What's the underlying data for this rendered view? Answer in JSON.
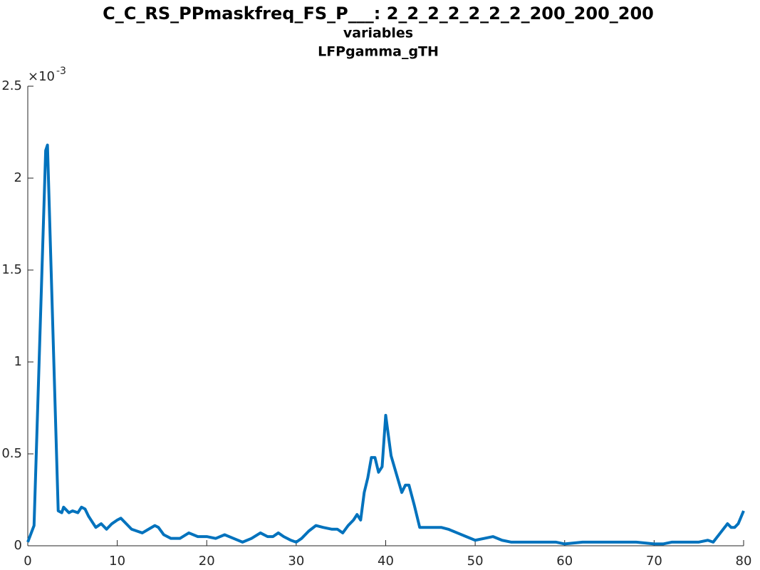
{
  "chart_data": {
    "type": "line",
    "title": "C_C_RS_PPmaskfreq_FS_P___: 2_2_2_2_2_2_2_200_200_200",
    "subtitle": [
      "variables",
      "LFPgamma_gTH"
    ],
    "y_multiplier": {
      "base": "×10",
      "exponent": "-3"
    },
    "x": [
      0,
      0.7,
      2,
      2.2,
      3.4,
      3.8,
      4,
      4.6,
      5,
      5.6,
      6,
      6.4,
      6.8,
      7.6,
      8.2,
      8.8,
      9.4,
      10,
      10.4,
      11,
      11.6,
      12.2,
      12.8,
      13.5,
      14.2,
      14.6,
      15.2,
      16,
      17,
      18,
      19,
      20,
      21,
      22,
      23,
      24,
      25,
      26,
      26.8,
      27.4,
      28,
      28.6,
      29.4,
      30,
      30.6,
      31.4,
      32.2,
      33,
      34,
      34.6,
      35.2,
      35.8,
      36.4,
      36.8,
      37.2,
      37.6,
      38,
      38.4,
      38.8,
      39.2,
      39.6,
      40,
      40.6,
      41.2,
      41.8,
      42.2,
      42.6,
      43.2,
      43.8,
      44.4,
      45,
      45.6,
      46.2,
      47,
      48,
      49,
      50,
      51,
      52,
      53,
      54,
      55,
      56,
      57,
      58,
      59,
      60,
      62,
      64,
      66,
      68,
      70,
      71,
      72,
      73,
      74,
      75,
      76,
      76.6,
      77.4,
      78.2,
      78.6,
      79,
      79.4,
      80
    ],
    "series": [
      {
        "color": "#0072bd",
        "values": [
          0.02,
          0.11,
          2.15,
          2.18,
          0.19,
          0.18,
          0.21,
          0.18,
          0.19,
          0.18,
          0.21,
          0.2,
          0.16,
          0.1,
          0.12,
          0.09,
          0.12,
          0.14,
          0.15,
          0.12,
          0.09,
          0.08,
          0.07,
          0.09,
          0.11,
          0.1,
          0.06,
          0.04,
          0.04,
          0.07,
          0.05,
          0.05,
          0.04,
          0.06,
          0.04,
          0.02,
          0.04,
          0.07,
          0.05,
          0.05,
          0.07,
          0.05,
          0.03,
          0.02,
          0.04,
          0.08,
          0.11,
          0.1,
          0.09,
          0.09,
          0.07,
          0.11,
          0.14,
          0.17,
          0.14,
          0.29,
          0.37,
          0.48,
          0.48,
          0.4,
          0.43,
          0.71,
          0.49,
          0.39,
          0.29,
          0.33,
          0.33,
          0.22,
          0.1,
          0.1,
          0.1,
          0.1,
          0.1,
          0.09,
          0.07,
          0.05,
          0.03,
          0.04,
          0.05,
          0.03,
          0.02,
          0.02,
          0.02,
          0.02,
          0.02,
          0.02,
          0.01,
          0.02,
          0.02,
          0.02,
          0.02,
          0.01,
          0.01,
          0.02,
          0.02,
          0.02,
          0.02,
          0.03,
          0.02,
          0.07,
          0.12,
          0.1,
          0.1,
          0.12,
          0.19
        ]
      }
    ],
    "xlim": [
      0,
      80
    ],
    "xticks": [
      0,
      10,
      20,
      30,
      40,
      50,
      60,
      70,
      80
    ],
    "ylim": [
      0,
      2.5
    ],
    "yticks": [
      0,
      0.5,
      1,
      1.5,
      2,
      2.5
    ]
  }
}
